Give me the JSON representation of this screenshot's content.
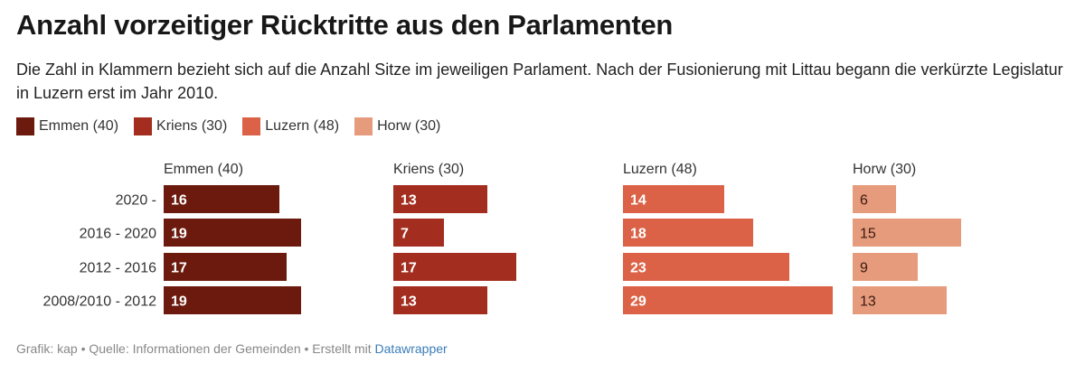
{
  "header": {
    "title": "Anzahl vorzeitiger Rücktritte aus den Parlamenten",
    "subtitle": "Die Zahl in Klammern bezieht sich auf die Anzahl Sitze im jeweiligen Parlament. Nach der Fusionierung mit Littau begann die verkürzte Legislatur in Luzern erst im Jahr 2010."
  },
  "legend": [
    {
      "label": "Emmen (40)",
      "color": "#6b1a0d"
    },
    {
      "label": "Kriens (30)",
      "color": "#a32e1f"
    },
    {
      "label": "Luzern (48)",
      "color": "#db6246"
    },
    {
      "label": "Horw (30)",
      "color": "#e69b7c"
    }
  ],
  "chart_data": {
    "type": "bar",
    "orientation": "horizontal",
    "layout": "small-multiples",
    "categories": [
      "2020 -",
      "2016 - 2020",
      "2012 - 2016",
      "2008/2010 - 2012"
    ],
    "series": [
      {
        "name": "Emmen (40)",
        "color": "#6b1a0d",
        "values": [
          16,
          19,
          17,
          19
        ]
      },
      {
        "name": "Kriens (30)",
        "color": "#a32e1f",
        "values": [
          13,
          7,
          17,
          13
        ]
      },
      {
        "name": "Luzern (48)",
        "color": "#db6246",
        "values": [
          14,
          18,
          23,
          29
        ]
      },
      {
        "name": "Horw (30)",
        "color": "#e69b7c",
        "values": [
          6,
          15,
          9,
          13
        ]
      }
    ],
    "xlim": [
      0,
      29
    ],
    "grid": false,
    "legend_position": "top-left"
  },
  "footer": {
    "text": "Grafik: kap • Quelle: Informationen der Gemeinden • Erstellt mit ",
    "link": "Datawrapper"
  }
}
